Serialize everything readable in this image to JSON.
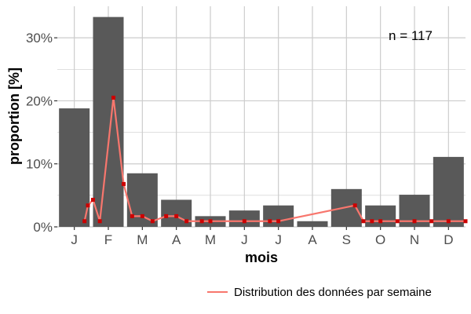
{
  "chart_data": {
    "type": "bar",
    "categories": [
      "J",
      "F",
      "M",
      "A",
      "M",
      "J",
      "J",
      "A",
      "S",
      "O",
      "N",
      "D"
    ],
    "values": [
      18.8,
      33.3,
      8.5,
      4.3,
      1.7,
      2.6,
      3.4,
      0.9,
      6.0,
      3.4,
      5.1,
      11.1
    ],
    "ylim": [
      0,
      35
    ],
    "yticks": [
      0,
      10,
      20,
      30
    ],
    "ytick_labels": [
      "0%",
      "10%",
      "20%",
      "30%"
    ],
    "xlabel": "mois",
    "ylabel": "proportion [%]",
    "annotation": "n = 117",
    "grid": true,
    "legend_position": "bottom-right",
    "series": [
      {
        "type": "line",
        "name": "Distribution des données par semaine",
        "x": [
          1.3,
          1.4,
          1.55,
          1.75,
          2.15,
          2.45,
          2.7,
          3.0,
          3.3,
          3.7,
          4.0,
          4.3,
          4.75,
          5.0,
          6.0,
          6.75,
          7.0,
          9.25,
          9.5,
          9.75,
          10.0,
          10.5,
          11.0,
          11.5,
          12.0,
          12.5
        ],
        "values": [
          0.9,
          3.4,
          4.3,
          0.9,
          20.5,
          6.8,
          1.7,
          1.7,
          0.9,
          1.7,
          1.7,
          0.9,
          0.9,
          0.9,
          0.9,
          0.9,
          0.9,
          3.4,
          0.9,
          0.9,
          0.9,
          0.9,
          0.9,
          0.9,
          0.9,
          0.9
        ]
      }
    ],
    "colors": {
      "bar": "#595959",
      "line": "#f8766d",
      "point": "#cc0000",
      "grid": "#cccccc"
    }
  }
}
